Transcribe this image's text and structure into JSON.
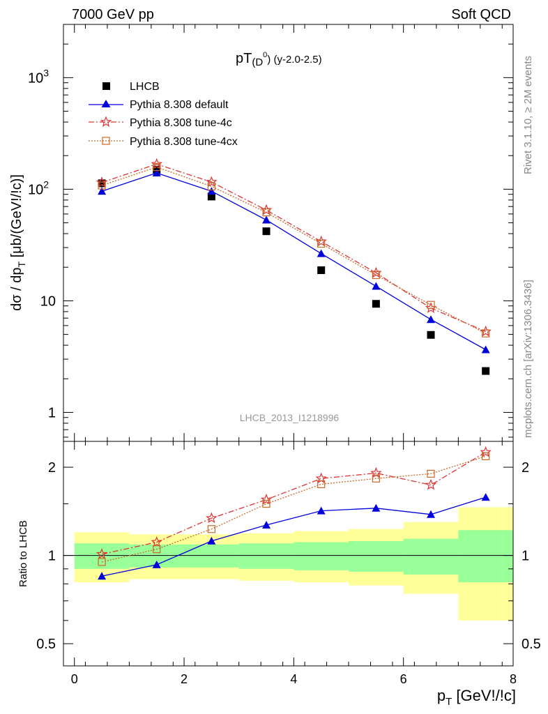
{
  "header": {
    "left": "7000 GeV pp",
    "right": "Soft QCD"
  },
  "side_labels": {
    "rivet": "Rivet 3.1.10, ≥ 2M events",
    "mcplots": "mcplots.cern.ch [arXiv:1306.3436]"
  },
  "main": {
    "title_main": "pT",
    "title_sub": "(D",
    "title_sup": "0",
    "title_close": ")",
    "title_rest": " (y-2.0-2.5)",
    "watermark": "LHCB_2013_I1218996",
    "ylabel": "dσ / dp",
    "ylabel_sub": "T",
    "ylabel_units": " [μb/(GeV!/!c)]",
    "yticks": [
      {
        "value": 1,
        "label": "1"
      },
      {
        "value": 10,
        "label": "10"
      },
      {
        "value": 100,
        "label": "10",
        "sup": "2"
      },
      {
        "value": 1000,
        "label": "10",
        "sup": "3"
      }
    ]
  },
  "ratio": {
    "ylabel": "Ratio to LHCB",
    "yticks": [
      {
        "value": 0.5,
        "label": "0.5"
      },
      {
        "value": 1,
        "label": "1"
      },
      {
        "value": 2,
        "label": "2"
      }
    ]
  },
  "xaxis": {
    "label": "p",
    "label_sub": "T",
    "label_units": " [GeV!/!c]",
    "ticks": [
      {
        "value": 0,
        "label": "0"
      },
      {
        "value": 2,
        "label": "2"
      },
      {
        "value": 4,
        "label": "4"
      },
      {
        "value": 6,
        "label": "6"
      },
      {
        "value": 8,
        "label": "8"
      }
    ]
  },
  "colors": {
    "data": "#000000",
    "default": "#0000dd",
    "tune4c": "#dd3333",
    "tune4cx": "#cc6622",
    "band_inner": "#99ff99",
    "band_outer": "#ffff99"
  },
  "chart_data": {
    "type": "scatter",
    "xlim": [
      -0.2,
      8.0
    ],
    "ylim_main": [
      0.55,
      3000
    ],
    "ylim_ratio": [
      0.42,
      2.45
    ],
    "log_y": true,
    "x": [
      0.5,
      1.5,
      2.5,
      3.5,
      4.5,
      5.5,
      6.5,
      7.5
    ],
    "bin_edges": [
      0,
      1,
      2,
      3,
      4,
      5,
      6,
      7,
      8
    ],
    "series": [
      {
        "name": "LHCB",
        "style": "data",
        "values": [
          113,
          150,
          86,
          42,
          18.8,
          9.4,
          4.95,
          2.35
        ]
      },
      {
        "name": "Pythia 8.308 default",
        "style": "default",
        "values": [
          96,
          140,
          96,
          53,
          26.5,
          13.5,
          6.8,
          3.65
        ]
      },
      {
        "name": "Pythia 8.308 tune-4c",
        "style": "tune4c",
        "values": [
          115,
          168,
          116,
          65,
          34,
          17.8,
          8.6,
          5.3
        ]
      },
      {
        "name": "Pythia 8.308 tune-4cx",
        "style": "tune4cx",
        "values": [
          108,
          158,
          106,
          62,
          32.5,
          17,
          9.2,
          5.1
        ]
      }
    ],
    "ratios": [
      {
        "name": "Pythia 8.308 default",
        "style": "default",
        "values": [
          0.85,
          0.93,
          1.12,
          1.27,
          1.42,
          1.45,
          1.38,
          1.58
        ]
      },
      {
        "name": "Pythia 8.308 tune-4c",
        "style": "tune4c",
        "values": [
          1.01,
          1.11,
          1.34,
          1.55,
          1.83,
          1.91,
          1.74,
          2.25
        ]
      },
      {
        "name": "Pythia 8.308 tune-4cx",
        "style": "tune4cx",
        "values": [
          0.95,
          1.05,
          1.23,
          1.5,
          1.75,
          1.83,
          1.9,
          2.18
        ]
      }
    ],
    "band_inner": [
      [
        0.9,
        1.1
      ],
      [
        0.91,
        1.09
      ],
      [
        0.91,
        1.09
      ],
      [
        0.9,
        1.1
      ],
      [
        0.89,
        1.11
      ],
      [
        0.88,
        1.12
      ],
      [
        0.86,
        1.14
      ],
      [
        0.81,
        1.22
      ]
    ],
    "band_outer": [
      [
        0.81,
        1.2
      ],
      [
        0.83,
        1.18
      ],
      [
        0.83,
        1.18
      ],
      [
        0.82,
        1.19
      ],
      [
        0.81,
        1.21
      ],
      [
        0.79,
        1.23
      ],
      [
        0.74,
        1.3
      ],
      [
        0.6,
        1.46
      ]
    ]
  }
}
